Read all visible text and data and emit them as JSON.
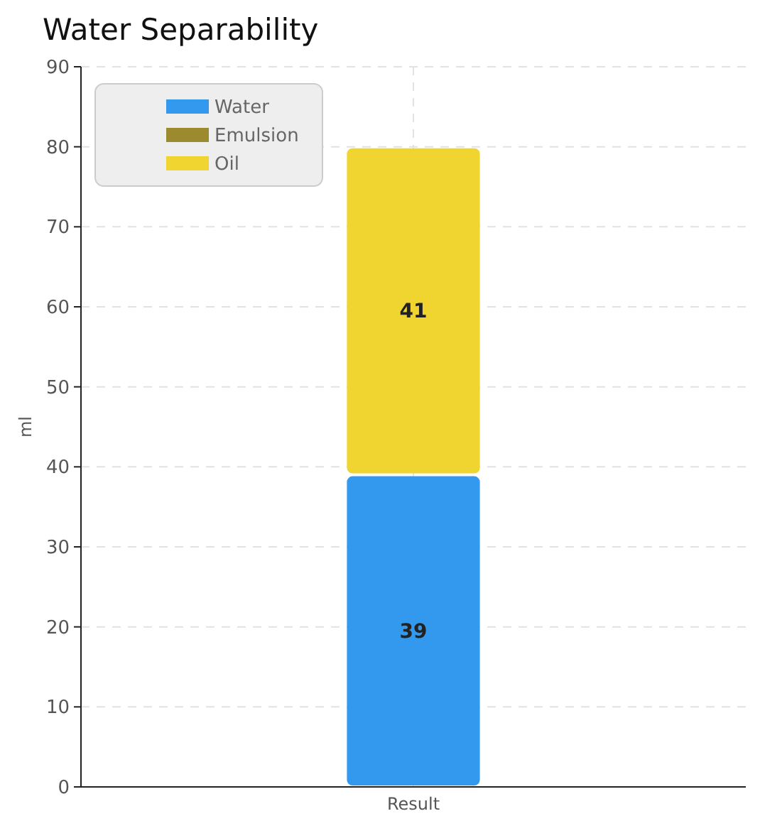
{
  "chart_data": {
    "type": "bar",
    "title": "Water Separability",
    "ylabel": "ml",
    "categories": [
      "Result"
    ],
    "stacked": true,
    "series": [
      {
        "name": "Water",
        "color": "#3399ee",
        "values": [
          39
        ],
        "value_labels": [
          "39"
        ]
      },
      {
        "name": "Emulsion",
        "color": "#9c8a2e",
        "values": [
          0
        ],
        "value_labels": [
          null
        ]
      },
      {
        "name": "Oil",
        "color": "#f0d530",
        "values": [
          41
        ],
        "value_labels": [
          "41"
        ]
      }
    ],
    "ylim": [
      0,
      90
    ],
    "yticks": [
      0,
      10,
      20,
      30,
      40,
      50,
      60,
      70,
      80,
      90
    ],
    "grid": true,
    "legend": "top left"
  }
}
